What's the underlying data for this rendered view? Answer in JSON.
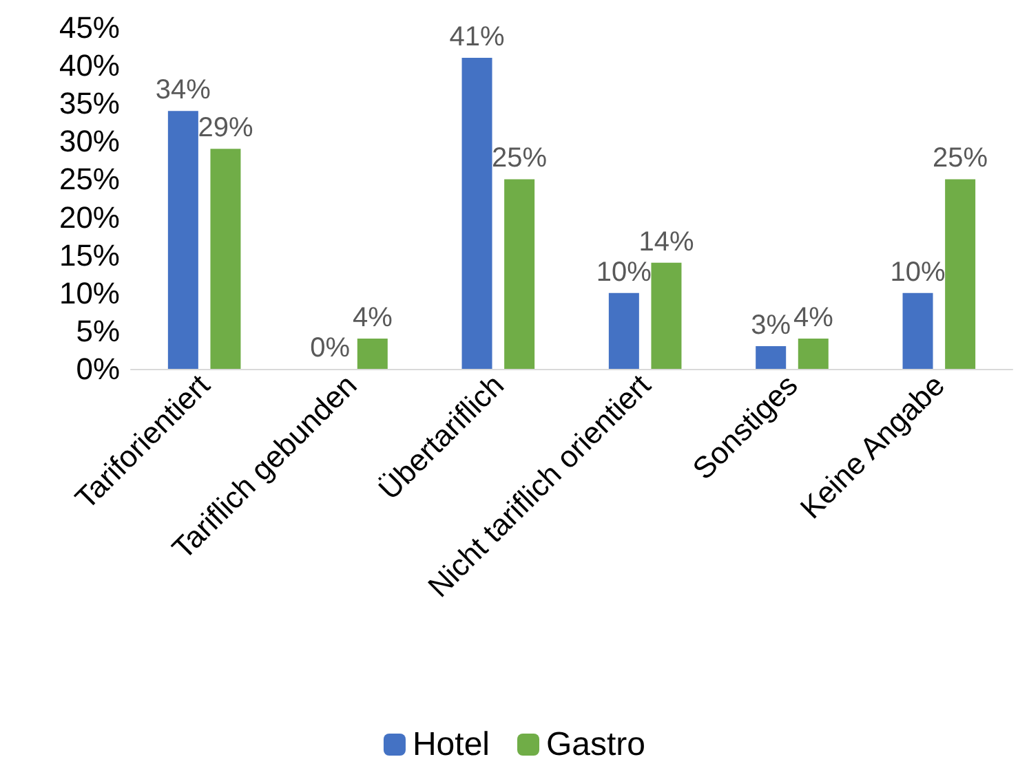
{
  "chart_data": {
    "type": "bar",
    "categories": [
      "Tariforientiert",
      "Tariflich gebunden",
      "Übertariflich",
      "Nicht tariflich orientiert",
      "Sonstiges",
      "Keine Angabe"
    ],
    "series": [
      {
        "name": "Hotel",
        "color": "#4472c4",
        "values": [
          34,
          0,
          41,
          10,
          3,
          10
        ],
        "value_labels": [
          "34%",
          "0%",
          "41%",
          "10%",
          "3%",
          "10%"
        ]
      },
      {
        "name": "Gastro",
        "color": "#70ad47",
        "values": [
          29,
          4,
          25,
          14,
          4,
          25
        ],
        "value_labels": [
          "29%",
          "4%",
          "25%",
          "14%",
          "4%",
          "25%"
        ]
      }
    ],
    "ylim": [
      0,
      45
    ],
    "yticks": [
      {
        "value": 0,
        "label": "0%"
      },
      {
        "value": 5,
        "label": "5%"
      },
      {
        "value": 10,
        "label": "10%"
      },
      {
        "value": 15,
        "label": "15%"
      },
      {
        "value": 20,
        "label": "20%"
      },
      {
        "value": 25,
        "label": "25%"
      },
      {
        "value": 30,
        "label": "30%"
      },
      {
        "value": 35,
        "label": "35%"
      },
      {
        "value": 40,
        "label": "40%"
      },
      {
        "value": 45,
        "label": "45%"
      }
    ],
    "grid": false,
    "legend": "bottom"
  }
}
